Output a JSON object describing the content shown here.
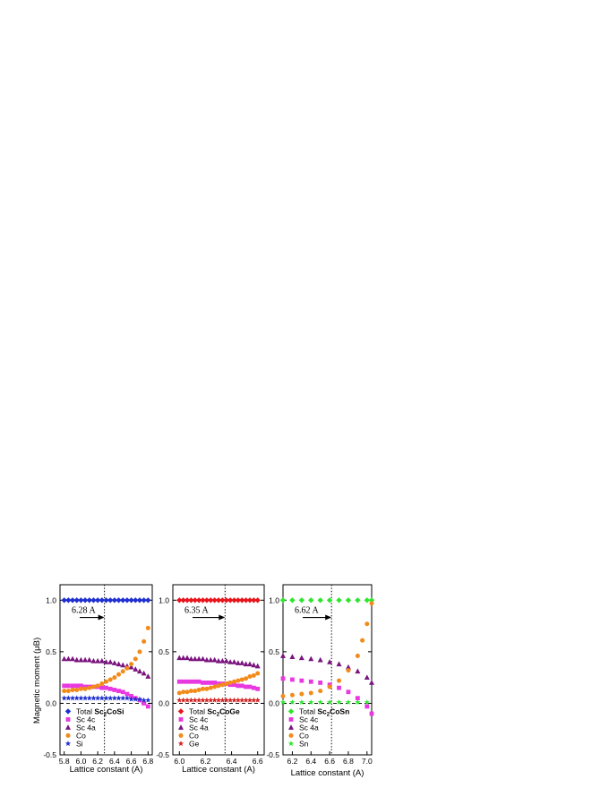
{
  "y_axis_label": "Magnetic moment (μB)",
  "x_axis_label": "Lattice constant (A)",
  "colors": {
    "total_si": "#1f2fd0",
    "total_ge": "#e8141c",
    "total_sn": "#2ee62e",
    "sc4c": "#e838e0",
    "sc4a": "#7a137e",
    "co": "#f28b1a",
    "si": "#1f2fd0",
    "ge": "#d42020",
    "sn": "#2ee62e"
  },
  "chart_data": [
    {
      "type": "scatter",
      "compound": "Sc2CoSi",
      "xlim": [
        5.75,
        6.85
      ],
      "ylim": [
        -0.5,
        1.15
      ],
      "xticks": [
        "5.8",
        "6.0",
        "6.2",
        "6.4",
        "6.6",
        "6.8"
      ],
      "yticks": [
        "-0.5",
        "0.0",
        "0.5",
        "1.0"
      ],
      "equilibrium": 6.28,
      "annotation": "6.28 A",
      "legend": {
        "total_prefix": "Total",
        "formula_main": "Sc",
        "formula_sub": "2",
        "formula_tail": "CoSi",
        "items": [
          "Sc 4c",
          "Sc 4a",
          "Co",
          "Si"
        ]
      },
      "series": [
        {
          "name": "Total Sc2CoSi",
          "marker": "diamond",
          "color_key": "total_si",
          "x": [
            5.8,
            5.85,
            5.9,
            5.95,
            6.0,
            6.05,
            6.1,
            6.15,
            6.2,
            6.25,
            6.3,
            6.35,
            6.4,
            6.45,
            6.5,
            6.55,
            6.6,
            6.65,
            6.7,
            6.75,
            6.8
          ],
          "y": [
            1,
            1,
            1,
            1,
            1,
            1,
            1,
            1,
            1,
            1,
            1,
            1,
            1,
            1,
            1,
            1,
            1,
            1,
            1,
            1,
            1
          ]
        },
        {
          "name": "Sc 4c",
          "marker": "square",
          "color_key": "sc4c",
          "x": [
            5.8,
            5.85,
            5.9,
            5.95,
            6.0,
            6.05,
            6.1,
            6.15,
            6.2,
            6.25,
            6.3,
            6.35,
            6.4,
            6.45,
            6.5,
            6.55,
            6.6,
            6.65,
            6.7,
            6.75,
            6.8
          ],
          "y": [
            0.17,
            0.17,
            0.17,
            0.17,
            0.17,
            0.16,
            0.16,
            0.16,
            0.16,
            0.15,
            0.15,
            0.14,
            0.13,
            0.12,
            0.11,
            0.09,
            0.07,
            0.05,
            0.03,
            0.0,
            -0.03
          ]
        },
        {
          "name": "Sc 4a",
          "marker": "triangle",
          "color_key": "sc4a",
          "x": [
            5.8,
            5.85,
            5.9,
            5.95,
            6.0,
            6.05,
            6.1,
            6.15,
            6.2,
            6.25,
            6.3,
            6.35,
            6.4,
            6.45,
            6.5,
            6.55,
            6.6,
            6.65,
            6.7,
            6.75,
            6.8
          ],
          "y": [
            0.43,
            0.43,
            0.43,
            0.42,
            0.42,
            0.42,
            0.42,
            0.41,
            0.41,
            0.41,
            0.4,
            0.4,
            0.39,
            0.38,
            0.37,
            0.36,
            0.35,
            0.33,
            0.31,
            0.29,
            0.26
          ]
        },
        {
          "name": "Co",
          "marker": "circle",
          "color_key": "co",
          "x": [
            5.8,
            5.85,
            5.9,
            5.95,
            6.0,
            6.05,
            6.1,
            6.15,
            6.2,
            6.25,
            6.3,
            6.35,
            6.4,
            6.45,
            6.5,
            6.55,
            6.6,
            6.65,
            6.7,
            6.75,
            6.8
          ],
          "y": [
            0.12,
            0.12,
            0.13,
            0.13,
            0.14,
            0.14,
            0.15,
            0.16,
            0.17,
            0.19,
            0.21,
            0.23,
            0.25,
            0.28,
            0.31,
            0.34,
            0.38,
            0.43,
            0.5,
            0.6,
            0.73
          ]
        },
        {
          "name": "Si",
          "marker": "star",
          "color_key": "si",
          "x": [
            5.8,
            5.85,
            5.9,
            5.95,
            6.0,
            6.05,
            6.1,
            6.15,
            6.2,
            6.25,
            6.3,
            6.35,
            6.4,
            6.45,
            6.5,
            6.55,
            6.6,
            6.65,
            6.7,
            6.75,
            6.8
          ],
          "y": [
            0.05,
            0.05,
            0.05,
            0.05,
            0.05,
            0.05,
            0.05,
            0.05,
            0.05,
            0.05,
            0.05,
            0.05,
            0.05,
            0.05,
            0.05,
            0.05,
            0.04,
            0.04,
            0.04,
            0.03,
            0.03
          ]
        }
      ]
    },
    {
      "type": "scatter",
      "compound": "Sc2CoGe",
      "xlim": [
        5.95,
        6.65
      ],
      "ylim": [
        -0.5,
        1.15
      ],
      "xticks": [
        "6.0",
        "6.2",
        "6.4",
        "6.6"
      ],
      "yticks": [
        "-0.5",
        "0.0",
        "0.5",
        "1.0"
      ],
      "equilibrium": 6.35,
      "annotation": "6.35 A",
      "legend": {
        "total_prefix": "Total",
        "formula_main": "Sc",
        "formula_sub": "2",
        "formula_tail": "CoGe",
        "items": [
          "Sc 4c",
          "Sc 4a",
          "Co",
          "Ge"
        ]
      },
      "series": [
        {
          "name": "Total Sc2CoGe",
          "marker": "diamond",
          "color_key": "total_ge",
          "x": [
            6.0,
            6.03,
            6.06,
            6.09,
            6.12,
            6.15,
            6.18,
            6.21,
            6.24,
            6.27,
            6.3,
            6.33,
            6.36,
            6.39,
            6.42,
            6.45,
            6.48,
            6.51,
            6.54,
            6.57,
            6.6
          ],
          "y": [
            1,
            1,
            1,
            1,
            1,
            1,
            1,
            1,
            1,
            1,
            1,
            1,
            1,
            1,
            1,
            1,
            1,
            1,
            1,
            1,
            1
          ]
        },
        {
          "name": "Sc 4c",
          "marker": "square",
          "color_key": "sc4c",
          "x": [
            6.0,
            6.03,
            6.06,
            6.09,
            6.12,
            6.15,
            6.18,
            6.21,
            6.24,
            6.27,
            6.3,
            6.33,
            6.36,
            6.39,
            6.42,
            6.45,
            6.48,
            6.51,
            6.54,
            6.57,
            6.6
          ],
          "y": [
            0.21,
            0.21,
            0.21,
            0.21,
            0.21,
            0.21,
            0.2,
            0.2,
            0.2,
            0.2,
            0.19,
            0.19,
            0.19,
            0.18,
            0.18,
            0.17,
            0.17,
            0.16,
            0.16,
            0.15,
            0.14
          ]
        },
        {
          "name": "Sc 4a",
          "marker": "triangle",
          "color_key": "sc4a",
          "x": [
            6.0,
            6.03,
            6.06,
            6.09,
            6.12,
            6.15,
            6.18,
            6.21,
            6.24,
            6.27,
            6.3,
            6.33,
            6.36,
            6.39,
            6.42,
            6.45,
            6.48,
            6.51,
            6.54,
            6.57,
            6.6
          ],
          "y": [
            0.44,
            0.44,
            0.44,
            0.43,
            0.43,
            0.43,
            0.43,
            0.42,
            0.42,
            0.42,
            0.41,
            0.41,
            0.41,
            0.4,
            0.4,
            0.39,
            0.39,
            0.38,
            0.38,
            0.37,
            0.36
          ]
        },
        {
          "name": "Co",
          "marker": "circle",
          "color_key": "co",
          "x": [
            6.0,
            6.03,
            6.06,
            6.09,
            6.12,
            6.15,
            6.18,
            6.21,
            6.24,
            6.27,
            6.3,
            6.33,
            6.36,
            6.39,
            6.42,
            6.45,
            6.48,
            6.51,
            6.54,
            6.57,
            6.6
          ],
          "y": [
            0.1,
            0.11,
            0.11,
            0.12,
            0.12,
            0.13,
            0.14,
            0.14,
            0.15,
            0.16,
            0.17,
            0.18,
            0.19,
            0.2,
            0.21,
            0.22,
            0.23,
            0.24,
            0.26,
            0.27,
            0.29
          ]
        },
        {
          "name": "Ge",
          "marker": "star",
          "color_key": "ge",
          "x": [
            6.0,
            6.03,
            6.06,
            6.09,
            6.12,
            6.15,
            6.18,
            6.21,
            6.24,
            6.27,
            6.3,
            6.33,
            6.36,
            6.39,
            6.42,
            6.45,
            6.48,
            6.51,
            6.54,
            6.57,
            6.6
          ],
          "y": [
            0.03,
            0.03,
            0.03,
            0.03,
            0.03,
            0.03,
            0.03,
            0.03,
            0.03,
            0.03,
            0.03,
            0.03,
            0.03,
            0.03,
            0.03,
            0.03,
            0.03,
            0.03,
            0.03,
            0.03,
            0.03
          ]
        }
      ]
    },
    {
      "type": "scatter",
      "compound": "Sc2CoSn",
      "xlim": [
        6.1,
        7.05
      ],
      "ylim": [
        -0.5,
        1.15
      ],
      "xticks": [
        "6.2",
        "6.4",
        "6.6",
        "6.8",
        "7.0"
      ],
      "yticks": [
        "-0.5",
        "0.0",
        "0.5",
        "1.0"
      ],
      "equilibrium": 6.62,
      "annotation": "6.62 A",
      "legend": {
        "total_prefix": "Total",
        "formula_main": "Sc",
        "formula_sub": "2",
        "formula_tail": "CoSn",
        "items": [
          "Sc 4c",
          "Sc 4a",
          "Co",
          "Sn"
        ]
      },
      "series": [
        {
          "name": "Total Sc2CoSn",
          "marker": "diamond",
          "color_key": "total_sn",
          "x": [
            6.1,
            6.2,
            6.3,
            6.4,
            6.5,
            6.6,
            6.7,
            6.8,
            6.9,
            7.0,
            7.05
          ],
          "y": [
            1,
            1,
            1,
            1,
            1,
            1,
            1,
            1,
            1,
            1,
            1
          ]
        },
        {
          "name": "Sc 4c",
          "marker": "square",
          "color_key": "sc4c",
          "x": [
            6.1,
            6.2,
            6.3,
            6.4,
            6.5,
            6.6,
            6.7,
            6.8,
            6.9,
            7.0,
            7.05
          ],
          "y": [
            0.24,
            0.23,
            0.22,
            0.21,
            0.2,
            0.18,
            0.15,
            0.11,
            0.05,
            -0.03,
            -0.1
          ]
        },
        {
          "name": "Sc 4a",
          "marker": "triangle",
          "color_key": "sc4a",
          "x": [
            6.1,
            6.2,
            6.3,
            6.4,
            6.5,
            6.6,
            6.7,
            6.8,
            6.9,
            7.0,
            7.05
          ],
          "y": [
            0.46,
            0.45,
            0.44,
            0.43,
            0.42,
            0.4,
            0.38,
            0.35,
            0.31,
            0.25,
            0.2
          ]
        },
        {
          "name": "Co",
          "marker": "circle",
          "color_key": "co",
          "x": [
            6.1,
            6.2,
            6.3,
            6.4,
            6.5,
            6.6,
            6.7,
            6.8,
            6.9,
            6.95,
            7.0,
            7.05
          ],
          "y": [
            0.07,
            0.08,
            0.09,
            0.1,
            0.12,
            0.16,
            0.22,
            0.32,
            0.46,
            0.61,
            0.77,
            0.97
          ]
        },
        {
          "name": "Sn",
          "marker": "star",
          "color_key": "sn",
          "x": [
            6.1,
            6.2,
            6.3,
            6.4,
            6.5,
            6.6,
            6.7,
            6.8,
            6.9,
            7.0
          ],
          "y": [
            0.01,
            0.01,
            0.01,
            0.01,
            0.01,
            0.01,
            0.01,
            0.01,
            0.01,
            0.01
          ]
        }
      ]
    }
  ]
}
